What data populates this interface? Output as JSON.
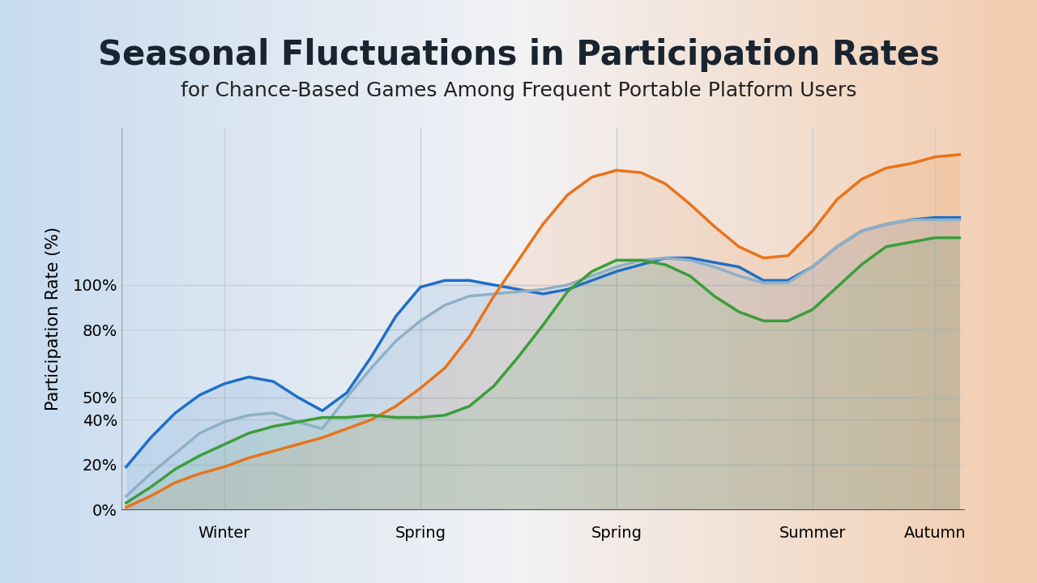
{
  "chart_data": {
    "type": "line",
    "title": "Seasonal Fluctuations in Participation Rates",
    "subtitle": "for Chance-Based Games Among Frequent Portable Platform Users",
    "y_label": "Participation Rate (%)",
    "categories": [
      null,
      null,
      null,
      null,
      "Winter",
      null,
      null,
      null,
      null,
      null,
      null,
      null,
      "Spring",
      null,
      null,
      null,
      null,
      null,
      null,
      null,
      "Spring",
      null,
      null,
      null,
      null,
      null,
      null,
      null,
      "Summer",
      null,
      null,
      null,
      null,
      "Autumn",
      null
    ],
    "series": [
      {
        "color": "#1f6fc5",
        "values": [
          19,
          32,
          43,
          51,
          56,
          59,
          57,
          50,
          44,
          52,
          68,
          86,
          99,
          102,
          102,
          100,
          98,
          96,
          98,
          102,
          106,
          109,
          112,
          112,
          110,
          108,
          102,
          102,
          108,
          117,
          124,
          127,
          129,
          130,
          130
        ]
      },
      {
        "color": "#8fb0c6",
        "values": [
          6,
          16,
          25,
          34,
          39,
          42,
          43,
          39,
          36,
          50,
          63,
          75,
          84,
          91,
          95,
          96,
          97,
          98,
          100,
          104,
          108,
          111,
          112,
          111,
          108,
          104,
          101,
          101,
          108,
          117,
          124,
          127,
          129,
          129,
          129
        ]
      },
      {
        "color": "#e8731a",
        "values": [
          1,
          6,
          12,
          16,
          19,
          23,
          26,
          29,
          32,
          36,
          40,
          46,
          54,
          63,
          77,
          95,
          111,
          127,
          140,
          148,
          151,
          150,
          145,
          136,
          126,
          117,
          112,
          113,
          124,
          138,
          147,
          152,
          154,
          157,
          158
        ]
      },
      {
        "color": "#3a9e3a",
        "values": [
          3,
          10,
          18,
          24,
          29,
          34,
          37,
          39,
          41,
          41,
          42,
          41,
          41,
          42,
          46,
          55,
          68,
          82,
          97,
          106,
          111,
          111,
          109,
          104,
          95,
          88,
          84,
          84,
          89,
          99,
          109,
          117,
          119,
          121,
          121
        ]
      }
    ],
    "ylim": [
      0,
      170
    ],
    "yticks": [
      {
        "value": 0,
        "label": "0%"
      },
      {
        "value": 20,
        "label": "20%"
      },
      {
        "value": 40,
        "label": "40%"
      },
      {
        "value": 50,
        "label": "50%"
      },
      {
        "value": 80,
        "label": "80%"
      },
      {
        "value": 100,
        "label": "100%"
      }
    ],
    "grid": true
  }
}
